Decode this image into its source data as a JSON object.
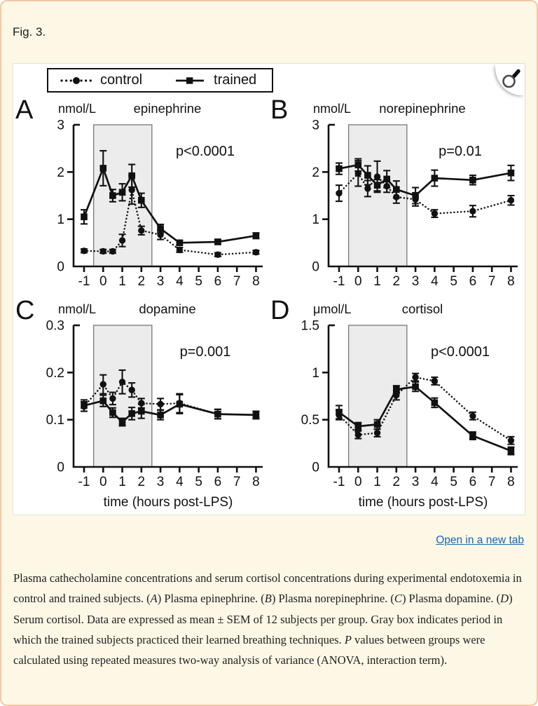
{
  "page": {
    "figure_label": "Fig. 3.",
    "open_link": "Open in a new tab"
  },
  "legend": {
    "control": "control",
    "trained": "trained"
  },
  "colors": {
    "page_bg": "#fdf7e6",
    "page_border": "#f2c8a3",
    "link": "#1568b3",
    "ink": "#111111",
    "gray_box_fill": "#ececec",
    "gray_box_stroke": "#7f7f7f"
  },
  "caption": {
    "segments": [
      {
        "text": "Plasma cathecholamine concentrations and serum cortisol concentrations during experimental endotoxemia in control and trained subjects. (",
        "italic": false
      },
      {
        "text": "A",
        "italic": true
      },
      {
        "text": ") Plasma epinephrine. (",
        "italic": false
      },
      {
        "text": "B",
        "italic": true
      },
      {
        "text": ") Plasma norepinephrine. (",
        "italic": false
      },
      {
        "text": "C",
        "italic": true
      },
      {
        "text": ") Plasma dopamine. (",
        "italic": false
      },
      {
        "text": "D",
        "italic": true
      },
      {
        "text": ") Serum cortisol. Data are expressed as mean ± SEM of 12 subjects per group. Gray box indicates period in which the trained subjects practiced their learned breathing techniques. ",
        "italic": false
      },
      {
        "text": "P",
        "italic": true
      },
      {
        "text": " values between groups were calculated using repeated measures two-way analysis of variance (ANOVA, interaction term).",
        "italic": false
      }
    ]
  },
  "chart_data": [
    {
      "type": "line",
      "panel": "A",
      "title": "epinephrine",
      "unit": "nmol/L",
      "p_label": "p<0.0001",
      "xlabel": "",
      "ylim": [
        0,
        3
      ],
      "y_ticks": [
        0,
        1,
        2,
        3
      ],
      "x_ticks": [
        -1,
        0,
        1,
        2,
        3,
        4,
        5,
        6,
        7,
        8
      ],
      "gray_box_x": [
        -0.5,
        2.55
      ],
      "x": [
        -1,
        0,
        0.5,
        1,
        1.5,
        2,
        3,
        4,
        6,
        8
      ],
      "series": [
        {
          "name": "control",
          "marker": "circle",
          "line": "dotted",
          "values": [
            0.33,
            0.32,
            0.32,
            0.55,
            1.62,
            0.76,
            0.67,
            0.35,
            0.25,
            0.3
          ],
          "sem": [
            0.04,
            0.04,
            0.04,
            0.13,
            0.3,
            0.09,
            0.1,
            0.05,
            0.04,
            0.04
          ]
        },
        {
          "name": "trained",
          "marker": "square",
          "line": "solid",
          "values": [
            1.05,
            2.08,
            1.5,
            1.57,
            1.92,
            1.4,
            0.8,
            0.5,
            0.52,
            0.65
          ],
          "sem": [
            0.15,
            0.37,
            0.13,
            0.18,
            0.24,
            0.15,
            0.09,
            0.05,
            0.05,
            0.06
          ]
        }
      ]
    },
    {
      "type": "line",
      "panel": "B",
      "title": "norepinephrine",
      "unit": "nmol/L",
      "p_label": "p=0.01",
      "xlabel": "",
      "ylim": [
        0,
        3
      ],
      "y_ticks": [
        0,
        1,
        2,
        3
      ],
      "x_ticks": [
        -1,
        0,
        1,
        2,
        3,
        4,
        5,
        6,
        7,
        8
      ],
      "gray_box_x": [
        -0.5,
        2.55
      ],
      "x": [
        -1,
        0,
        0.5,
        1,
        1.5,
        2,
        3,
        4,
        6,
        8
      ],
      "series": [
        {
          "name": "control",
          "marker": "circle",
          "line": "dotted",
          "values": [
            1.55,
            1.97,
            1.65,
            1.9,
            1.7,
            1.47,
            1.42,
            1.12,
            1.17,
            1.4
          ],
          "sem": [
            0.17,
            0.27,
            0.17,
            0.33,
            0.13,
            0.13,
            0.14,
            0.08,
            0.12,
            0.1
          ]
        },
        {
          "name": "trained",
          "marker": "square",
          "line": "solid",
          "values": [
            2.07,
            2.15,
            1.93,
            1.72,
            1.85,
            1.63,
            1.5,
            1.87,
            1.83,
            1.98
          ],
          "sem": [
            0.12,
            0.13,
            0.2,
            0.12,
            0.18,
            0.18,
            0.17,
            0.17,
            0.1,
            0.16
          ]
        }
      ]
    },
    {
      "type": "line",
      "panel": "C",
      "title": "dopamine",
      "unit": "nmol/L",
      "p_label": "p=0.001",
      "xlabel": "time (hours post-LPS)",
      "ylim": [
        0,
        0.3
      ],
      "y_ticks": [
        0,
        0.1,
        0.2,
        0.3
      ],
      "x_ticks": [
        -1,
        0,
        1,
        2,
        3,
        4,
        5,
        6,
        7,
        8
      ],
      "gray_box_x": [
        -0.5,
        2.55
      ],
      "x": [
        -1,
        0,
        0.5,
        1,
        1.5,
        2,
        3,
        4,
        6,
        8
      ],
      "series": [
        {
          "name": "control",
          "marker": "circle",
          "line": "dotted",
          "values": [
            0.128,
            0.175,
            0.145,
            0.18,
            0.163,
            0.135,
            0.133,
            0.135,
            0.112,
            0.11
          ],
          "sem": [
            0.01,
            0.02,
            0.013,
            0.025,
            0.015,
            0.01,
            0.012,
            0.02,
            0.01,
            0.008
          ]
        },
        {
          "name": "trained",
          "marker": "square",
          "line": "solid",
          "values": [
            0.13,
            0.14,
            0.115,
            0.095,
            0.113,
            0.118,
            0.11,
            0.133,
            0.112,
            0.11
          ],
          "sem": [
            0.012,
            0.012,
            0.01,
            0.008,
            0.013,
            0.015,
            0.01,
            0.02,
            0.01,
            0.008
          ]
        }
      ]
    },
    {
      "type": "line",
      "panel": "D",
      "title": "cortisol",
      "unit": "μmol/L",
      "p_label": "p<0.0001",
      "xlabel": "time (hours post-LPS)",
      "ylim": [
        0,
        1.5
      ],
      "y_ticks": [
        0,
        0.5,
        1,
        1.5
      ],
      "x_ticks": [
        -1,
        0,
        1,
        2,
        3,
        4,
        5,
        6,
        7,
        8
      ],
      "gray_box_x": [
        -0.5,
        2.55
      ],
      "x": [
        -1,
        0,
        1,
        2,
        3,
        4,
        6,
        8
      ],
      "series": [
        {
          "name": "control",
          "marker": "circle",
          "line": "dotted",
          "values": [
            0.55,
            0.34,
            0.36,
            0.76,
            0.95,
            0.91,
            0.54,
            0.28
          ],
          "sem": [
            0.05,
            0.04,
            0.04,
            0.05,
            0.04,
            0.04,
            0.04,
            0.04
          ]
        },
        {
          "name": "trained",
          "marker": "square",
          "line": "solid",
          "values": [
            0.58,
            0.43,
            0.45,
            0.82,
            0.85,
            0.68,
            0.33,
            0.17
          ],
          "sem": [
            0.07,
            0.04,
            0.05,
            0.04,
            0.05,
            0.05,
            0.04,
            0.04
          ]
        }
      ]
    }
  ]
}
